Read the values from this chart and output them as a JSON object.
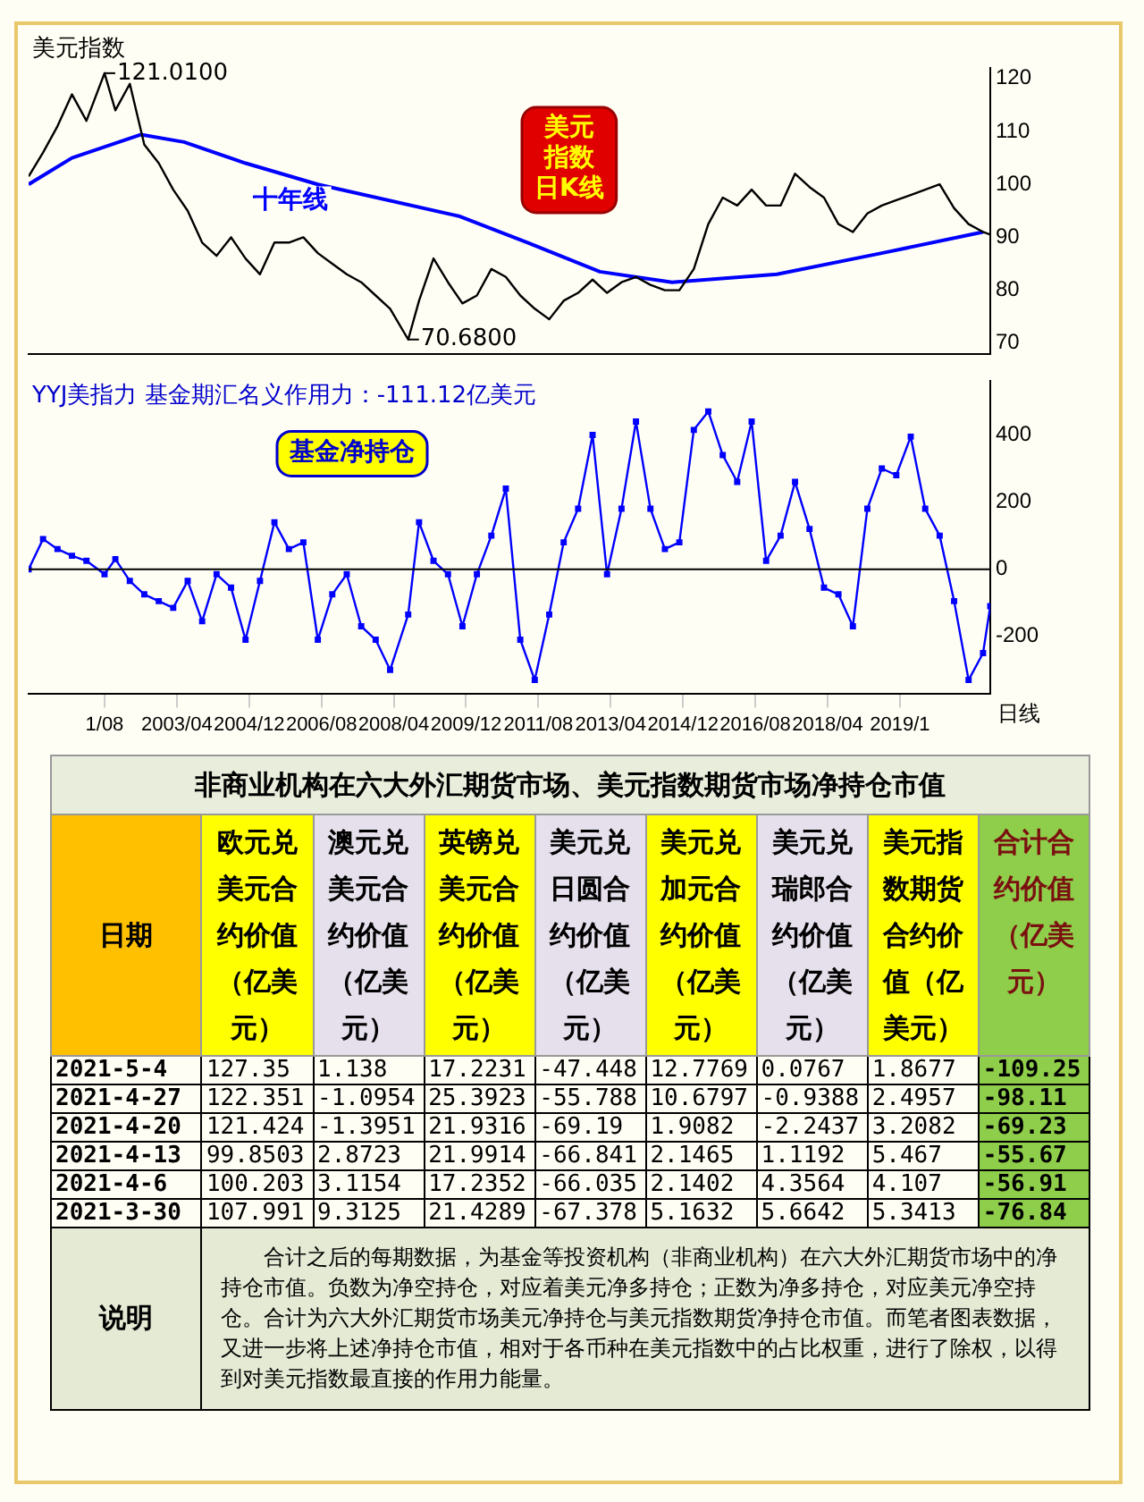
{
  "chart_data": [
    {
      "type": "line",
      "title": "美元指数",
      "x": [
        "1999-11",
        "2000-03",
        "2000-07",
        "2000-11",
        "2001-03",
        "2001-08",
        "2001-11",
        "2002-03",
        "2002-07",
        "2002-11",
        "2003-03",
        "2003-07",
        "2003-11",
        "2004-03",
        "2004-07",
        "2004-11",
        "2005-03",
        "2005-07",
        "2005-11",
        "2006-03",
        "2006-07",
        "2006-11",
        "2007-03",
        "2007-07",
        "2007-11",
        "2008-03",
        "2008-08",
        "2008-11",
        "2009-03",
        "2009-07",
        "2009-11",
        "2010-03",
        "2010-07",
        "2010-11",
        "2011-03",
        "2011-07",
        "2011-11",
        "2012-03",
        "2012-07",
        "2012-11",
        "2013-03",
        "2013-07",
        "2013-11",
        "2014-03",
        "2014-07",
        "2014-11",
        "2015-03",
        "2015-07",
        "2015-11",
        "2016-03",
        "2016-07",
        "2016-11",
        "2017-03",
        "2017-07",
        "2017-11",
        "2018-03",
        "2018-07",
        "2018-11",
        "2019-03",
        "2019-07",
        "2019-11",
        "2020-03",
        "2020-07",
        "2020-11",
        "2021-03",
        "2021-07",
        "2021-11",
        "2022-01"
      ],
      "series": [
        {
          "color": "#000000",
          "values": [
            101.5,
            106,
            111,
            117,
            112,
            121.01,
            114,
            119,
            107.5,
            104,
            99,
            95,
            89,
            86.5,
            90,
            86,
            83,
            89,
            89,
            90,
            87,
            85,
            83,
            81.5,
            79,
            76.5,
            70.68,
            78,
            86,
            81.5,
            77.5,
            79,
            84,
            82.5,
            79,
            76.5,
            74.5,
            78,
            79.5,
            82,
            79.5,
            81.5,
            82.5,
            81,
            80,
            80,
            84,
            92.5,
            97.5,
            96,
            99,
            96,
            96,
            102,
            99.5,
            97.5,
            92.5,
            91,
            94.5,
            96,
            97,
            98,
            99,
            100,
            95.5,
            92.5,
            91,
            90.5
          ]
        },
        {
          "name": "十年线",
          "color": "#0000ff",
          "x": [
            "1999-11",
            "2000-11",
            "2002-06",
            "2003-06",
            "2004-11",
            "2006-07",
            "2009-10",
            "2011-05",
            "2013-01",
            "2014-09",
            "2017-02",
            "2019-07",
            "2021-11"
          ],
          "values": [
            100,
            105,
            109.4,
            108,
            104,
            100,
            94,
            89,
            83.5,
            81.5,
            83,
            87,
            91
          ]
        }
      ],
      "xlim": [
        "1999-11",
        "2022-01"
      ],
      "ylim": [
        68,
        122
      ],
      "yticks": [
        70,
        80,
        90,
        100,
        110,
        120
      ],
      "tick_labels": "y",
      "annotations": [
        {
          "text": "121.0100",
          "x": "2001-08",
          "y": 121.01
        },
        {
          "text": "70.6800",
          "x": "2008-08",
          "y": 70.68
        },
        "美元",
        "指数",
        "日K线"
      ]
    },
    {
      "type": "line",
      "title": "YYJ美指力 基金期汇名义作用力：-111.12亿美元",
      "xlabel": "日线",
      "x": [
        "1999-11",
        "2000-03",
        "2000-07",
        "2000-11",
        "2001-03",
        "2001-08",
        "2001-11",
        "2002-03",
        "2002-07",
        "2002-11",
        "2003-03",
        "2003-07",
        "2003-11",
        "2004-03",
        "2004-07",
        "2004-11",
        "2005-03",
        "2005-07",
        "2005-11",
        "2006-03",
        "2006-07",
        "2006-11",
        "2007-03",
        "2007-07",
        "2007-11",
        "2008-03",
        "2008-08",
        "2008-11",
        "2009-03",
        "2009-07",
        "2009-11",
        "2010-03",
        "2010-07",
        "2010-11",
        "2011-03",
        "2011-07",
        "2011-11",
        "2012-03",
        "2012-07",
        "2012-11",
        "2013-03",
        "2013-07",
        "2013-11",
        "2014-03",
        "2014-07",
        "2014-11",
        "2015-03",
        "2015-07",
        "2015-11",
        "2016-03",
        "2016-07",
        "2016-11",
        "2017-03",
        "2017-07",
        "2017-11",
        "2018-03",
        "2018-07",
        "2018-11",
        "2019-03",
        "2019-07",
        "2019-11",
        "2020-03",
        "2020-07",
        "2020-11",
        "2021-03",
        "2021-07",
        "2021-11",
        "2022-01"
      ],
      "series": [
        {
          "color": "#0000ff",
          "values": [
            0,
            90,
            60,
            40,
            25,
            -15,
            30,
            -35,
            -75,
            -95,
            -115,
            -35,
            -155,
            -15,
            -55,
            -210,
            -35,
            140,
            60,
            80,
            -210,
            -75,
            -15,
            -170,
            -210,
            -300,
            -135,
            140,
            25,
            -15,
            -170,
            -15,
            100,
            240,
            -210,
            -330,
            -135,
            80,
            180,
            400,
            -15,
            180,
            440,
            180,
            60,
            80,
            415,
            470,
            340,
            260,
            440,
            25,
            100,
            260,
            120,
            -55,
            -75,
            -170,
            180,
            300,
            280,
            395,
            180,
            100,
            -95,
            -330,
            -250,
            -110
          ]
        }
      ],
      "marker": "square",
      "xlim": [
        "1999-11",
        "2022-01"
      ],
      "ylim": [
        -370,
        560
      ],
      "yticks": [
        -200,
        0,
        200,
        400
      ],
      "xticks": [
        {
          "value": "2001-08",
          "label": "1/08"
        },
        {
          "value": "2003-04",
          "label": "2003/04"
        },
        {
          "value": "2004-12",
          "label": "2004/12"
        },
        {
          "value": "2006-08",
          "label": "2006/08"
        },
        {
          "value": "2008-04",
          "label": "2008/04"
        },
        {
          "value": "2009-12",
          "label": "2009/12"
        },
        {
          "value": "2011-08",
          "label": "2011/08"
        },
        {
          "value": "2013-04",
          "label": "2013/04"
        },
        {
          "value": "2014-12",
          "label": "2014/12"
        },
        {
          "value": "2016-08",
          "label": "2016/08"
        },
        {
          "value": "2018-04",
          "label": "2018/04"
        },
        {
          "value": "2019-12",
          "label": "2019/1"
        }
      ],
      "ref_lines": [
        {
          "axis": "y",
          "value": 0,
          "color": "#000000"
        }
      ],
      "annotations": [
        "基金净持仓"
      ]
    },
    {
      "type": "other",
      "title": "非商业机构在六大外汇期货市场、美元指数期货市场净持仓市值",
      "annotations": [
        "日期",
        "欧元兑美元合约价值（亿美元）",
        "澳元兑美元合约价值（亿美元）",
        "英镑兑美元合约价值（亿美元）",
        "美元兑日圆合约价值（亿美元）",
        "美元兑加元合约价值（亿美元）",
        "美元兑瑞郎合约价值（亿美元）",
        "美元指数期货合约价值（亿美元）",
        "合计合约价值（亿美元）",
        "2021-5-4",
        "127.35",
        "1.138",
        "17.2231",
        "-47.448",
        "12.7769",
        "0.0767",
        "1.8677",
        "-109.25",
        "2021-4-27",
        "122.351",
        "-1.0954",
        "25.3923",
        "-55.788",
        "10.6797",
        "-0.9388",
        "2.4957",
        "-98.11",
        "2021-4-20",
        "121.424",
        "-1.3951",
        "21.9316",
        "-69.19",
        "1.9082",
        "-2.2437",
        "3.2082",
        "-69.23",
        "2021-4-13",
        "99.8503",
        "2.8723",
        "21.9914",
        "-66.841",
        "2.1465",
        "1.1192",
        "5.467",
        "-55.67",
        "2021-4-6",
        "100.203",
        "3.1154",
        "17.2352",
        "-66.035",
        "2.1402",
        "4.3564",
        "4.107",
        "-56.91",
        "2021-3-30",
        "107.991",
        "9.3125",
        "21.4289",
        "-67.378",
        "5.1632",
        "5.6642",
        "5.3413",
        "-76.84",
        "说明",
        "合计之后的每期数据，为基金等投资机构（非商业机构）在六大外汇期货市场中的净持仓市值。负数为净空持仓，对应着美元净多持仓；正数为净多持仓，对应美元净空持仓。合计为六大外汇期货市场美元净持仓与美元指数期货净持仓市值。而笔者图表数据，又进一步将上述净持仓市值，相对于各币种在美元指数中的占比权重，进行了除权，以得到对美元指数最直接的作用力能量。"
      ]
    }
  ]
}
